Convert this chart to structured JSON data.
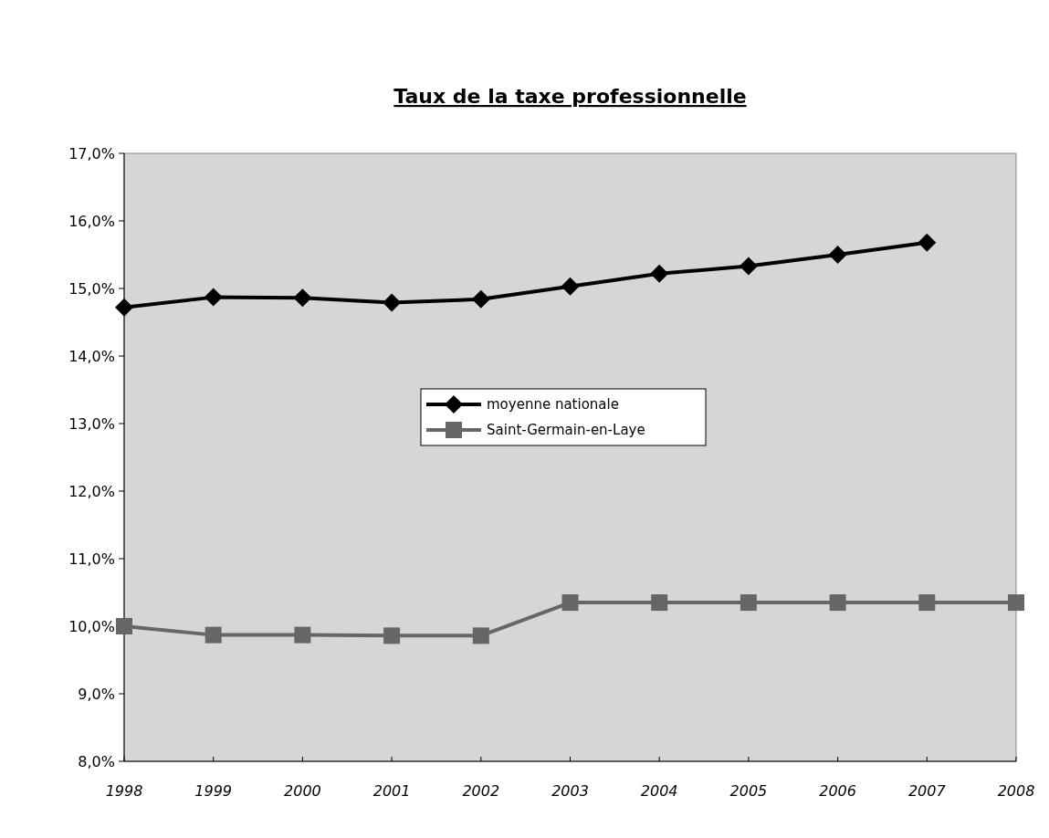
{
  "chart_data": {
    "type": "line",
    "title": "Taux de la taxe professionnelle",
    "categories": [
      "1998",
      "1999",
      "2000",
      "2001",
      "2002",
      "2003",
      "2004",
      "2005",
      "2006",
      "2007",
      "2008"
    ],
    "series": [
      {
        "name": "moyenne nationale",
        "color": "#000000",
        "marker": "diamond",
        "values": [
          14.72,
          14.87,
          14.86,
          14.79,
          14.84,
          15.03,
          15.22,
          15.33,
          15.5,
          15.68,
          null
        ]
      },
      {
        "name": "Saint-Germain-en-Laye",
        "color": "#666666",
        "marker": "square",
        "values": [
          10.0,
          9.87,
          9.87,
          9.86,
          9.86,
          10.35,
          10.35,
          10.35,
          10.35,
          10.35,
          10.35
        ]
      }
    ],
    "ylim": [
      8,
      17
    ],
    "yticks": [
      {
        "value": 8,
        "label": "8,0%"
      },
      {
        "value": 9,
        "label": "9,0%"
      },
      {
        "value": 10,
        "label": "10,0%"
      },
      {
        "value": 11,
        "label": "11,0%"
      },
      {
        "value": 12,
        "label": "12,0%"
      },
      {
        "value": 13,
        "label": "13,0%"
      },
      {
        "value": 14,
        "label": "14,0%"
      },
      {
        "value": 15,
        "label": "15,0%"
      },
      {
        "value": 16,
        "label": "16,0%"
      },
      {
        "value": 17,
        "label": "17,0%"
      }
    ],
    "legend": "center",
    "grid": false
  }
}
